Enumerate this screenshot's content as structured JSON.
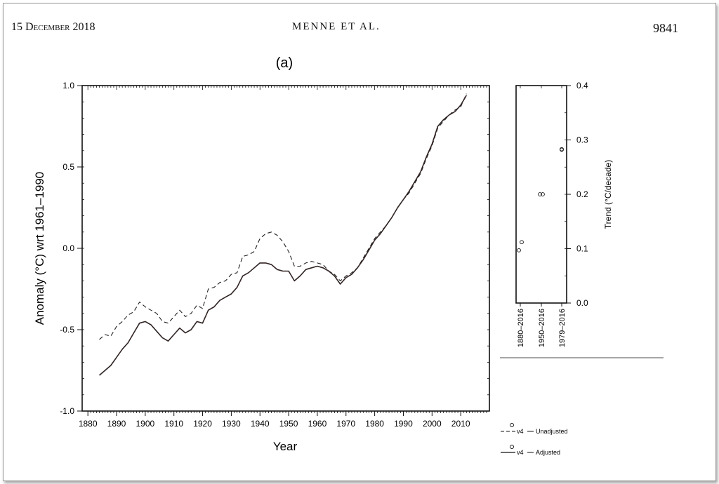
{
  "header": {
    "left": "15 December 2018",
    "center": "MENNE ET AL.",
    "right": "9841"
  },
  "chart_data": [
    {
      "type": "line",
      "panel_label": "(a)",
      "xlabel": "Year",
      "ylabel": "Anomaly (°C) wrt 1961–1990",
      "xlim": [
        1878,
        2020
      ],
      "ylim": [
        -1.0,
        1.0
      ],
      "x_ticks": [
        "1880",
        "1890",
        "1900",
        "1910",
        "1920",
        "1930",
        "1940",
        "1950",
        "1960",
        "1970",
        "1980",
        "1990",
        "2000",
        "2010"
      ],
      "y_ticks": [
        "1.0",
        "0.5",
        "0.0",
        "-0.5",
        "-1.0"
      ],
      "series": [
        {
          "name": "v4 — Unadjusted",
          "style": "dashed",
          "color": "#222222",
          "x": [
            1884,
            1886,
            1888,
            1890,
            1892,
            1894,
            1896,
            1898,
            1900,
            1902,
            1904,
            1906,
            1908,
            1910,
            1912,
            1914,
            1916,
            1918,
            1920,
            1922,
            1924,
            1926,
            1928,
            1930,
            1932,
            1934,
            1936,
            1938,
            1940,
            1942,
            1944,
            1946,
            1948,
            1950,
            1952,
            1954,
            1956,
            1958,
            1960,
            1962,
            1964,
            1966,
            1968,
            1970,
            1972,
            1974,
            1976,
            1978,
            1980,
            1982,
            1984,
            1986,
            1988,
            1990,
            1992,
            1994,
            1996,
            1998,
            2000,
            2002,
            2004,
            2006,
            2008,
            2010,
            2012
          ],
          "values": [
            -0.56,
            -0.53,
            -0.54,
            -0.48,
            -0.45,
            -0.41,
            -0.39,
            -0.33,
            -0.36,
            -0.38,
            -0.4,
            -0.45,
            -0.46,
            -0.42,
            -0.38,
            -0.42,
            -0.4,
            -0.35,
            -0.37,
            -0.25,
            -0.24,
            -0.21,
            -0.2,
            -0.16,
            -0.15,
            -0.05,
            -0.04,
            -0.02,
            0.06,
            0.09,
            0.1,
            0.08,
            0.04,
            -0.02,
            -0.11,
            -0.11,
            -0.09,
            -0.08,
            -0.09,
            -0.1,
            -0.14,
            -0.16,
            -0.2,
            -0.17,
            -0.15,
            -0.12,
            -0.06,
            0.0,
            0.06,
            0.1,
            0.14,
            0.19,
            0.25,
            0.3,
            0.34,
            0.4,
            0.46,
            0.55,
            0.63,
            0.74,
            0.78,
            0.82,
            0.85,
            0.87,
            0.95
          ]
        },
        {
          "name": "v4 — Adjusted",
          "style": "solid",
          "color": "#222222",
          "x": [
            1884,
            1886,
            1888,
            1890,
            1892,
            1894,
            1896,
            1898,
            1900,
            1902,
            1904,
            1906,
            1908,
            1910,
            1912,
            1914,
            1916,
            1918,
            1920,
            1922,
            1924,
            1926,
            1928,
            1930,
            1932,
            1934,
            1936,
            1938,
            1940,
            1942,
            1944,
            1946,
            1948,
            1950,
            1952,
            1954,
            1956,
            1958,
            1960,
            1962,
            1964,
            1966,
            1968,
            1970,
            1972,
            1974,
            1976,
            1978,
            1980,
            1982,
            1984,
            1986,
            1988,
            1990,
            1992,
            1994,
            1996,
            1998,
            2000,
            2002,
            2004,
            2006,
            2008,
            2010,
            2012
          ],
          "values": [
            -0.78,
            -0.75,
            -0.72,
            -0.67,
            -0.62,
            -0.58,
            -0.52,
            -0.46,
            -0.45,
            -0.47,
            -0.51,
            -0.55,
            -0.57,
            -0.53,
            -0.49,
            -0.52,
            -0.5,
            -0.45,
            -0.46,
            -0.38,
            -0.36,
            -0.32,
            -0.3,
            -0.28,
            -0.24,
            -0.17,
            -0.15,
            -0.12,
            -0.09,
            -0.09,
            -0.1,
            -0.13,
            -0.14,
            -0.14,
            -0.2,
            -0.17,
            -0.13,
            -0.12,
            -0.11,
            -0.12,
            -0.14,
            -0.17,
            -0.22,
            -0.18,
            -0.16,
            -0.12,
            -0.07,
            -0.01,
            0.05,
            0.09,
            0.14,
            0.19,
            0.25,
            0.3,
            0.35,
            0.41,
            0.47,
            0.56,
            0.64,
            0.75,
            0.79,
            0.82,
            0.84,
            0.88,
            0.94
          ]
        }
      ]
    },
    {
      "type": "scatter",
      "ylabel": "Trend (°C/decade)",
      "ylim": [
        0.0,
        0.4
      ],
      "y_ticks": [
        "0.0",
        "0.1",
        "0.2",
        "0.3",
        "0.4"
      ],
      "categories": [
        "1880–2016",
        "1950–2016",
        "1979–2016"
      ],
      "series": [
        {
          "name": "v4 Unadjusted",
          "values": [
            0.097,
            0.2,
            0.282
          ]
        },
        {
          "name": "v4 Adjusted",
          "values": [
            0.112,
            0.2,
            0.283
          ]
        }
      ]
    }
  ],
  "legend": [
    {
      "label": "Unadjusted",
      "prefix": "v4",
      "style": "dashed"
    },
    {
      "label": "Adjusted",
      "prefix": "v4",
      "style": "solid"
    }
  ]
}
